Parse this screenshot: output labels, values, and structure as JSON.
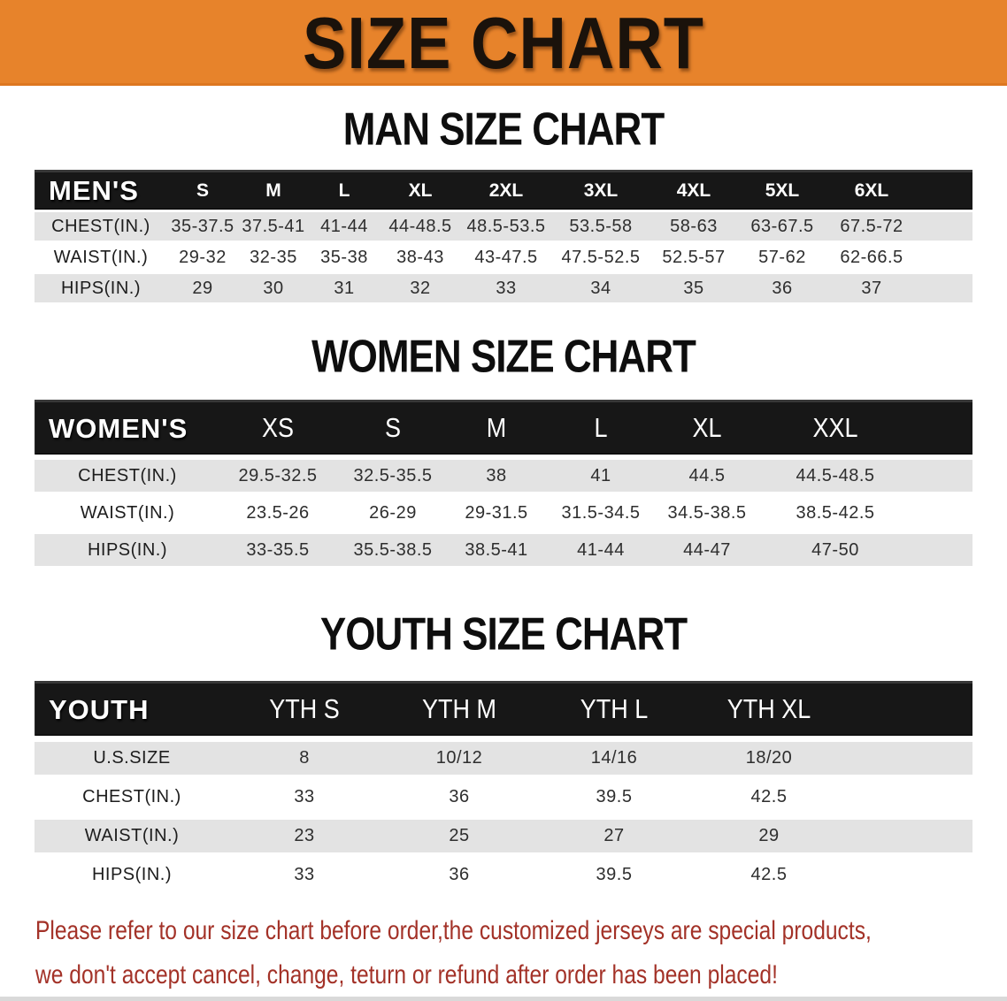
{
  "colors": {
    "banner_bg": "#E7832B",
    "table_header_bg": "#171717",
    "row_stripe_gray": "#E3E3E3",
    "disclaimer_red": "#A33228"
  },
  "banner": {
    "title": "SIZE CHART"
  },
  "men": {
    "heading": "MAN SIZE CHART",
    "table": {
      "header": [
        "MEN'S",
        "S",
        "M",
        "L",
        "XL",
        "2XL",
        "3XL",
        "4XL",
        "5XL",
        "6XL"
      ],
      "rows": [
        {
          "label": "CHEST(IN.)",
          "values": [
            "35-37.5",
            "37.5-41",
            "41-44",
            "44-48.5",
            "48.5-53.5",
            "53.5-58",
            "58-63",
            "63-67.5",
            "67.5-72"
          ]
        },
        {
          "label": "WAIST(IN.)",
          "values": [
            "29-32",
            "32-35",
            "35-38",
            "38-43",
            "43-47.5",
            "47.5-52.5",
            "52.5-57",
            "57-62",
            "62-66.5"
          ]
        },
        {
          "label": "HIPS(IN.)",
          "values": [
            "29",
            "30",
            "31",
            "32",
            "33",
            "34",
            "35",
            "36",
            "37"
          ]
        }
      ]
    }
  },
  "women": {
    "heading": "WOMEN SIZE CHART",
    "table": {
      "header": [
        "WOMEN'S",
        "XS",
        "S",
        "M",
        "L",
        "XL",
        "XXL"
      ],
      "rows": [
        {
          "label": "CHEST(IN.)",
          "values": [
            "29.5-32.5",
            "32.5-35.5",
            "38",
            "41",
            "44.5",
            "44.5-48.5"
          ]
        },
        {
          "label": "WAIST(IN.)",
          "values": [
            "23.5-26",
            "26-29",
            "29-31.5",
            "31.5-34.5",
            "34.5-38.5",
            "38.5-42.5"
          ]
        },
        {
          "label": "HIPS(IN.)",
          "values": [
            "33-35.5",
            "35.5-38.5",
            "38.5-41",
            "41-44",
            "44-47",
            "47-50"
          ]
        }
      ]
    }
  },
  "youth": {
    "heading": "YOUTH SIZE CHART",
    "table": {
      "header": [
        "YOUTH",
        "YTH S",
        "YTH M",
        "YTH L",
        "YTH XL"
      ],
      "rows": [
        {
          "label": "U.S.SIZE",
          "values": [
            "8",
            "10/12",
            "14/16",
            "18/20"
          ]
        },
        {
          "label": "CHEST(IN.)",
          "values": [
            "33",
            "36",
            "39.5",
            "42.5"
          ]
        },
        {
          "label": "WAIST(IN.)",
          "values": [
            "23",
            "25",
            "27",
            "29"
          ]
        },
        {
          "label": "HIPS(IN.)",
          "values": [
            "33",
            "36",
            "39.5",
            "42.5"
          ]
        }
      ]
    }
  },
  "disclaimer": {
    "line1": "Please refer to our size chart before order,the customized jerseys are special products,",
    "line2": "we don't accept cancel, change, teturn or refund after order has been placed!"
  }
}
